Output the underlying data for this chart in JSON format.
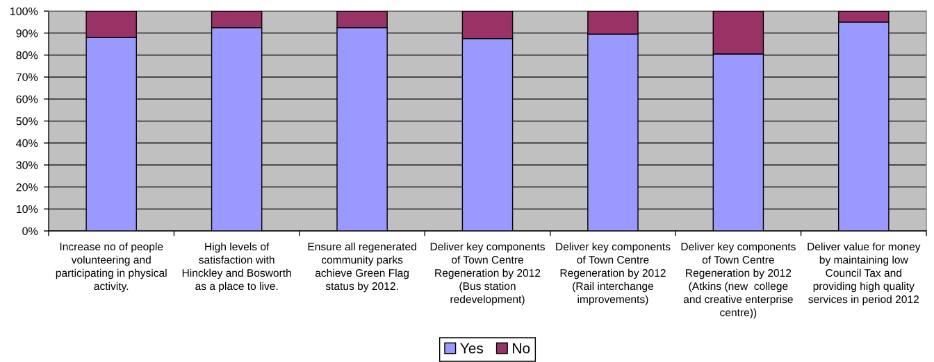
{
  "chart_data": {
    "type": "bar",
    "stacked": true,
    "categories": [
      "Increase no of people\nvolunteering and\nparticipating in physical\nactivity.",
      "High levels of\nsatisfaction with\nHinckley and Bosworth\nas a place to live.",
      "Ensure all regenerated\ncommunity parks\nachieve Green Flag\nstatus by 2012.",
      "Deliver key components\nof Town Centre\nRegeneration by 2012\n(Bus station\nredevelopment)",
      "Deliver key components\nof Town Centre\nRegeneration by 2012\n(Rail interchange\nimprovements)",
      "Deliver key components\nof Town Centre\nRegeneration by 2012\n(Atkins (new  college\nand creative enterprise\ncentre))",
      "Deliver value for money\nby maintaining low\nCouncil Tax and\nproviding high quality\nservices in period 2012"
    ],
    "series": [
      {
        "name": "Yes",
        "color": "#9999ff",
        "values": [
          88,
          92.5,
          92.5,
          87.5,
          89.5,
          80.5,
          95
        ]
      },
      {
        "name": "No",
        "color": "#993366",
        "values": [
          12,
          7.5,
          7.5,
          12.5,
          10.5,
          19.5,
          5
        ]
      }
    ],
    "ylim": [
      0,
      100
    ],
    "yticks": [
      {
        "value": 0,
        "label": "0%"
      },
      {
        "value": 10,
        "label": "10%"
      },
      {
        "value": 20,
        "label": "20%"
      },
      {
        "value": 30,
        "label": "30%"
      },
      {
        "value": 40,
        "label": "40%"
      },
      {
        "value": 50,
        "label": "50%"
      },
      {
        "value": 60,
        "label": "60%"
      },
      {
        "value": 70,
        "label": "70%"
      },
      {
        "value": 80,
        "label": "80%"
      },
      {
        "value": 90,
        "label": "90%"
      },
      {
        "value": 100,
        "label": "100%"
      }
    ],
    "grid": "y",
    "legend": "bottom"
  }
}
